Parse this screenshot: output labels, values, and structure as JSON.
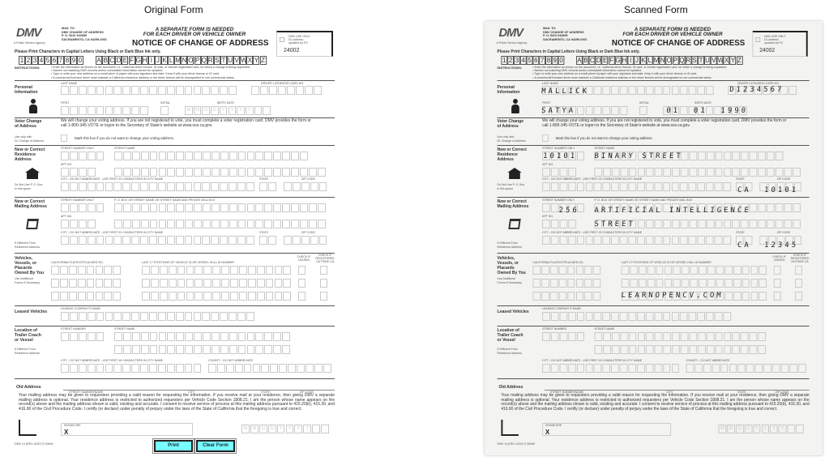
{
  "panels": {
    "original_title": "Original Form",
    "scanned_title": "Scanned Form"
  },
  "header": {
    "logo": "DMV",
    "agency": "A Public Service Agency",
    "mail_to": [
      "MAIL TO:",
      "DMV CHANGE OF ADDRESS",
      "P. O. BOX 942859",
      "SACRAMENTO, CA 94259-0001"
    ],
    "separate_1": "A SEPARATE FORM IS NEEDED",
    "separate_2": "FOR EACH DRIVER OR VEHICLE OWNER",
    "title": "NOTICE OF CHANGE OF ADDRESS",
    "dmv_use": [
      "DMV USE ONLY",
      "DL address",
      "updated by FO"
    ],
    "form_code": "24002"
  },
  "print_note": "Please Print Characters in Capital Letters Using Black or Dark Blue Ink only.",
  "sample_digits": "1234567890",
  "sample_letters": "ABCDEFGHIJKLMNOPQRSTUVWXYZ",
  "instructions": {
    "label": "INSTRUCTIONS:",
    "items": [
      "• Enter the information as shown on the document, i.e. California driver license, ID card, or vehicle registration card, for which a change is being requested.",
      "• Names not matching DMV records and/or unreadable information cannot be updated.",
      "• Type or write your new address on a small piece of paper with your signature and date. Keep it with your driver license or ID card.",
      "• A commercial licensed driver must maintain a California residence address or the driver license will be downgraded to non commercial status."
    ]
  },
  "personal": {
    "label": "Personal",
    "label2": "Information",
    "last_name": "LAST NAME",
    "dl": "DRIVER LICENSE/ID CARD NO.",
    "first": "FIRST",
    "initial": "INITIAL",
    "birth": "BIRTH DATE",
    "date_mask": "MM—DD—YYYY"
  },
  "voter": {
    "label": "Voter Change",
    "label2": "of Address",
    "text1": "We will change your voting address. If you are not registered to vote, you must complete a voter registration card. DMV provides the form or",
    "text2": "call 1-800-345-VOTE or logon to the Secretary of State's website at www.sos.ca.gov.",
    "use_only": "Use only with",
    "use_only2": "DL Change of Address",
    "checkbox": "Mark this box if you do not want to change your voting address."
  },
  "residence": {
    "label": "New or Correct",
    "label2": "Residence",
    "label3": "Address",
    "street_no": "STREET NUMBER ONLY",
    "street": "STREET NAME",
    "apt": "APT NO.",
    "city": "CITY - DO NOT ABBREVIATE - USE FIRST 22 CHARACTERS IN CITY NAME",
    "state": "STATE",
    "zip": "ZIP CODE",
    "note": "Do Not Use P. O. Box",
    "note2": "in this space"
  },
  "mailing": {
    "label": "New or Correct",
    "label2": "Mailing Address",
    "street_no": "STREET NUMBER ONLY",
    "street": "P. O. BOX OR STREET NAME OR STREET NAME AND PRIVATE MAIL BOX",
    "apt": "APT NO.",
    "city": "CITY - DO NOT ABBREVIATE - USE FIRST 22 CHARACTERS IN CITY NAME",
    "state": "STATE",
    "zip": "ZIP CODE",
    "note": "If Different From",
    "note2": "Residence Address"
  },
  "vehicles": {
    "label": "Vehicles,",
    "label2": "Vessels, or",
    "label3": "Placards",
    "label4": "Owned By You",
    "note": "Use Additional",
    "note2": "Forms If Necessary",
    "plate": "CALIFORNIA PLATE/CF/PLACARD NO.",
    "vin": "LAST 17 POSITIONS OF VEHICLE ID OR VESSEL HULL ID NUMBER",
    "leased": "CHECK IF LEASED",
    "outside": "CHECK IF REGISTERED OUTSIDE CA"
  },
  "leased": {
    "label": "Leased Vehicles",
    "company": "LEASING COMPANY'S NAME"
  },
  "location": {
    "label": "Location of",
    "label2": "Trailer Coach",
    "label3": "or Vessel",
    "note": "If Different From",
    "note2": "Residence Address",
    "street_no": "STREET NUMBER",
    "street": "STREET NAME",
    "city": "CITY - DO NOT ABBREVIATE - USE FIRST 16 CHARACTERS IN CITY NAME",
    "county": "COUNTY - DO NOT ABBREVIATE"
  },
  "old": {
    "label": "Old Address",
    "street": "STREET NUMBER/NAME",
    "city": "CITY",
    "state": "STATE",
    "zip": "ZIP CODE",
    "text": "Your mailing address may be given to requesters providing a valid reason for requesting the information. If you receive mail at your residence, then giving DMV a separate mailing address is optional. Your residence address is restricted to authorized requesters per Vehicle Code Section 1808.21. I am the person whose name appears on the record(s) above and the mailing address shown is valid, existing and accurate. I consent to receive service of process at this mailing address pursuant to 415.20(b), 415.30, and 416.90 of the Civil Procedure Code. I certify (or declare) under penalty of perjury under the laws of the State of California that the foregoing is true and correct."
  },
  "signature": {
    "label": "SIGNATURE",
    "x": "X"
  },
  "footer": {
    "rev": "DMV 14 (REV. 6/2017) WWW",
    "print": "Print",
    "clear": "Clear Form"
  },
  "filled": {
    "last_name": "MALLICK",
    "dl": "D1234567",
    "first": "SATYA",
    "birth": "01  01  1990",
    "res_no": "10101",
    "res_street": "BINARY STREET",
    "res_state": "CA",
    "res_zip": "10101",
    "mail_no": "256",
    "mail_street1": "ARTIFICIAL INTELLIGENCE",
    "mail_street2": "STREET",
    "mail_state": "CA",
    "mail_zip": "12345",
    "vehicle_vin": "LEARNOPENCV.COM"
  }
}
